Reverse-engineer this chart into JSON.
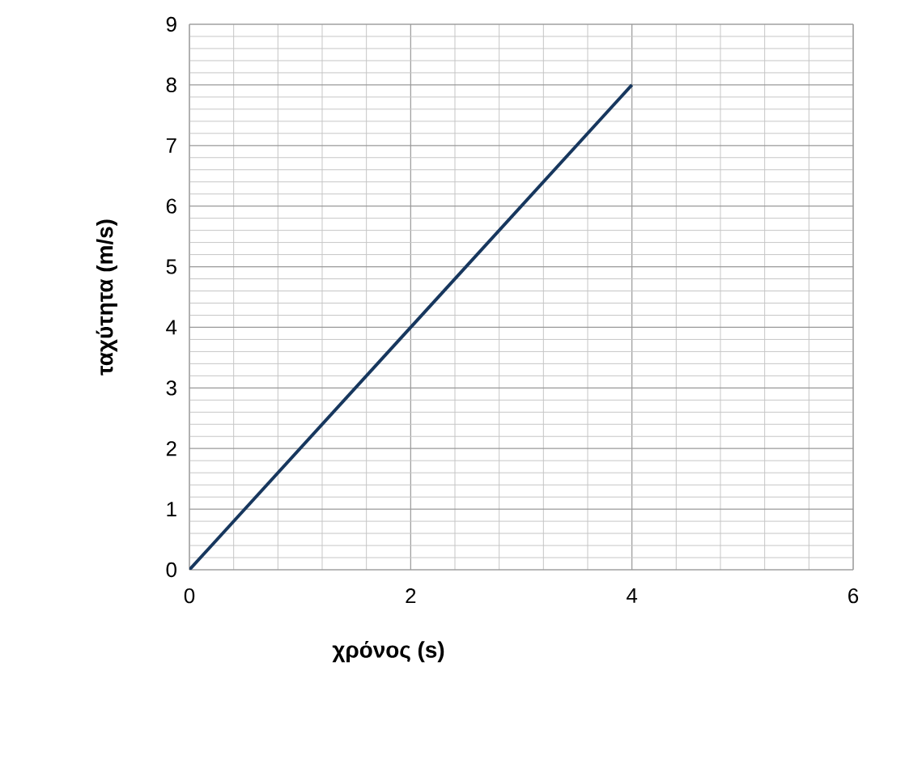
{
  "chart_data": {
    "type": "line",
    "xlabel": "χρόνος (s)",
    "ylabel": "ταχύτητα (m/s)",
    "x": [
      0,
      4
    ],
    "series": [
      {
        "color": "#17375e",
        "values": [
          0,
          8
        ]
      }
    ],
    "xlim": [
      0,
      6
    ],
    "ylim": [
      0,
      9
    ],
    "xticks": [
      0,
      2,
      4,
      6
    ],
    "yticks": [
      0,
      1,
      2,
      3,
      4,
      5,
      6,
      7,
      8,
      9
    ],
    "grid": true
  }
}
